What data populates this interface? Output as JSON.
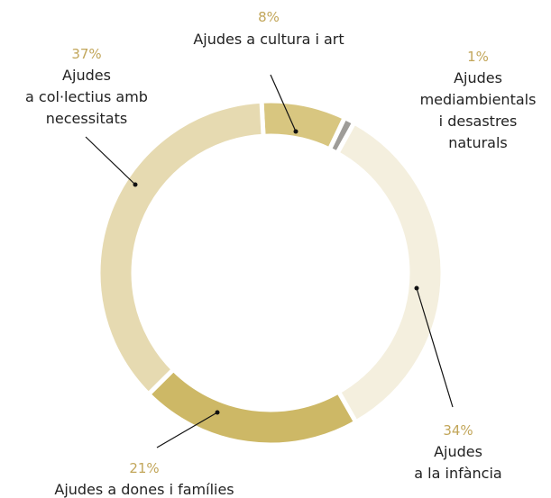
{
  "chart_data": {
    "type": "donut",
    "categories": [
      "Ajudes a cultura i art",
      "Ajudes\nmediambientals\ni desastres\nnaturals",
      "Ajudes\na la infància",
      "Ajudes a dones i famílies",
      "Ajudes\na col·lectius amb\nnecessitats"
    ],
    "values": [
      8,
      1,
      34,
      21,
      37
    ],
    "value_labels": [
      "8%",
      "1%",
      "34%",
      "21%",
      "37%"
    ],
    "colors": [
      "#d8c680",
      "#9e9c98",
      "#f4efde",
      "#cdb866",
      "#e6dab1"
    ]
  }
}
